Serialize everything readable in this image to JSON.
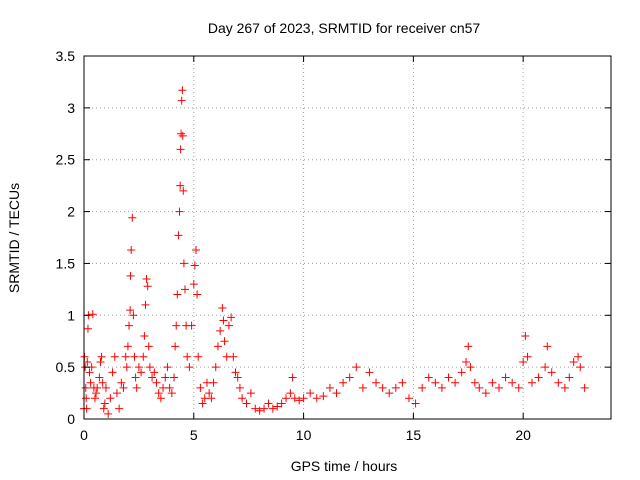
{
  "chart_data": {
    "type": "scatter",
    "title": "Day 267 of 2023, SRMTID for receiver cn57",
    "xlabel": "GPS time / hours",
    "ylabel": "SRMTID / TECUs",
    "xlim": [
      0,
      24
    ],
    "ylim": [
      0,
      3.5
    ],
    "xticks": [
      0,
      5,
      10,
      15,
      20
    ],
    "yticks": [
      0,
      0.5,
      1,
      1.5,
      2,
      2.5,
      3,
      3.5
    ],
    "x_tick_labels": [
      "0",
      "5",
      "10",
      "15",
      "20"
    ],
    "y_tick_labels": [
      "0",
      "0.5",
      "1",
      "1.5",
      "2",
      "2.5",
      "3",
      "3.5"
    ],
    "grid": true,
    "marker": "+",
    "series": [
      {
        "name": "SRMTID",
        "color": "#ff0000",
        "points": [
          [
            0.0,
            0.1
          ],
          [
            0.02,
            0.6
          ],
          [
            0.05,
            0.5
          ],
          [
            0.08,
            0.3
          ],
          [
            0.1,
            0.2
          ],
          [
            0.12,
            0.1
          ],
          [
            0.15,
            0.55
          ],
          [
            0.18,
            0.87
          ],
          [
            0.2,
            1.0
          ],
          [
            0.25,
            0.45
          ],
          [
            0.3,
            0.35
          ],
          [
            0.35,
            0.5
          ],
          [
            0.4,
            1.01
          ],
          [
            0.45,
            0.3
          ],
          [
            0.5,
            0.2
          ],
          [
            0.55,
            0.25
          ],
          [
            0.6,
            0.3
          ],
          [
            0.7,
            0.4
          ],
          [
            0.75,
            0.55
          ],
          [
            0.8,
            0.6
          ],
          [
            0.85,
            0.35
          ],
          [
            0.9,
            0.1
          ],
          [
            0.95,
            0.15
          ],
          [
            1.0,
            0.3
          ],
          [
            1.1,
            0.05
          ],
          [
            1.2,
            0.2
          ],
          [
            1.3,
            0.45
          ],
          [
            1.4,
            0.6
          ],
          [
            1.5,
            0.25
          ],
          [
            1.6,
            0.1
          ],
          [
            1.7,
            0.35
          ],
          [
            1.8,
            0.3
          ],
          [
            1.9,
            0.6
          ],
          [
            1.95,
            0.5
          ],
          [
            2.0,
            0.7
          ],
          [
            2.05,
            0.9
          ],
          [
            2.1,
            1.05
          ],
          [
            2.12,
            1.38
          ],
          [
            2.15,
            1.63
          ],
          [
            2.2,
            1.94
          ],
          [
            2.25,
            1.0
          ],
          [
            2.3,
            0.6
          ],
          [
            2.35,
            0.4
          ],
          [
            2.4,
            0.3
          ],
          [
            2.5,
            0.5
          ],
          [
            2.6,
            0.45
          ],
          [
            2.7,
            0.6
          ],
          [
            2.75,
            0.8
          ],
          [
            2.8,
            1.1
          ],
          [
            2.85,
            1.35
          ],
          [
            2.9,
            1.28
          ],
          [
            2.95,
            0.7
          ],
          [
            3.0,
            0.5
          ],
          [
            3.1,
            0.4
          ],
          [
            3.2,
            0.45
          ],
          [
            3.3,
            0.35
          ],
          [
            3.4,
            0.25
          ],
          [
            3.5,
            0.2
          ],
          [
            3.6,
            0.3
          ],
          [
            3.7,
            0.4
          ],
          [
            3.8,
            0.5
          ],
          [
            3.9,
            0.3
          ],
          [
            4.0,
            0.25
          ],
          [
            4.1,
            0.4
          ],
          [
            4.15,
            0.7
          ],
          [
            4.2,
            0.9
          ],
          [
            4.25,
            1.2
          ],
          [
            4.3,
            1.77
          ],
          [
            4.35,
            2.0
          ],
          [
            4.38,
            2.25
          ],
          [
            4.4,
            2.6
          ],
          [
            4.42,
            2.75
          ],
          [
            4.45,
            3.07
          ],
          [
            4.48,
            3.17
          ],
          [
            4.5,
            2.73
          ],
          [
            4.52,
            2.2
          ],
          [
            4.55,
            1.5
          ],
          [
            4.6,
            1.25
          ],
          [
            4.65,
            0.9
          ],
          [
            4.7,
            0.6
          ],
          [
            4.8,
            0.5
          ],
          [
            4.9,
            0.9
          ],
          [
            5.0,
            1.3
          ],
          [
            5.05,
            1.48
          ],
          [
            5.1,
            1.63
          ],
          [
            5.15,
            1.2
          ],
          [
            5.2,
            0.6
          ],
          [
            5.3,
            0.3
          ],
          [
            5.4,
            0.15
          ],
          [
            5.5,
            0.2
          ],
          [
            5.6,
            0.35
          ],
          [
            5.7,
            0.25
          ],
          [
            5.8,
            0.2
          ],
          [
            5.9,
            0.35
          ],
          [
            6.0,
            0.5
          ],
          [
            6.1,
            0.7
          ],
          [
            6.2,
            0.85
          ],
          [
            6.3,
            1.07
          ],
          [
            6.35,
            0.95
          ],
          [
            6.4,
            0.75
          ],
          [
            6.5,
            0.6
          ],
          [
            6.6,
            0.9
          ],
          [
            6.7,
            0.98
          ],
          [
            6.8,
            0.6
          ],
          [
            6.9,
            0.45
          ],
          [
            7.0,
            0.4
          ],
          [
            7.1,
            0.3
          ],
          [
            7.2,
            0.2
          ],
          [
            7.4,
            0.15
          ],
          [
            7.6,
            0.25
          ],
          [
            7.8,
            0.1
          ],
          [
            8.0,
            0.08
          ],
          [
            8.2,
            0.1
          ],
          [
            8.4,
            0.15
          ],
          [
            8.6,
            0.1
          ],
          [
            8.8,
            0.12
          ],
          [
            9.0,
            0.15
          ],
          [
            9.2,
            0.2
          ],
          [
            9.4,
            0.25
          ],
          [
            9.5,
            0.4
          ],
          [
            9.6,
            0.2
          ],
          [
            9.8,
            0.18
          ],
          [
            10.0,
            0.2
          ],
          [
            10.3,
            0.25
          ],
          [
            10.6,
            0.2
          ],
          [
            10.9,
            0.22
          ],
          [
            11.2,
            0.3
          ],
          [
            11.5,
            0.25
          ],
          [
            11.8,
            0.35
          ],
          [
            12.1,
            0.4
          ],
          [
            12.4,
            0.5
          ],
          [
            12.7,
            0.3
          ],
          [
            13.0,
            0.45
          ],
          [
            13.3,
            0.35
          ],
          [
            13.6,
            0.3
          ],
          [
            13.9,
            0.25
          ],
          [
            14.2,
            0.3
          ],
          [
            14.5,
            0.35
          ],
          [
            14.8,
            0.2
          ],
          [
            15.1,
            0.15
          ],
          [
            15.4,
            0.3
          ],
          [
            15.7,
            0.4
          ],
          [
            16.0,
            0.35
          ],
          [
            16.3,
            0.3
          ],
          [
            16.6,
            0.4
          ],
          [
            16.9,
            0.35
          ],
          [
            17.2,
            0.45
          ],
          [
            17.4,
            0.55
          ],
          [
            17.5,
            0.7
          ],
          [
            17.6,
            0.5
          ],
          [
            17.8,
            0.35
          ],
          [
            18.0,
            0.3
          ],
          [
            18.3,
            0.25
          ],
          [
            18.6,
            0.35
          ],
          [
            18.9,
            0.3
          ],
          [
            19.2,
            0.4
          ],
          [
            19.5,
            0.35
          ],
          [
            19.8,
            0.3
          ],
          [
            20.0,
            0.55
          ],
          [
            20.1,
            0.8
          ],
          [
            20.2,
            0.6
          ],
          [
            20.4,
            0.35
          ],
          [
            20.7,
            0.4
          ],
          [
            21.0,
            0.5
          ],
          [
            21.1,
            0.7
          ],
          [
            21.3,
            0.45
          ],
          [
            21.6,
            0.35
          ],
          [
            21.9,
            0.3
          ],
          [
            22.1,
            0.4
          ],
          [
            22.3,
            0.55
          ],
          [
            22.5,
            0.6
          ],
          [
            22.6,
            0.5
          ],
          [
            22.8,
            0.3
          ]
        ]
      }
    ]
  }
}
